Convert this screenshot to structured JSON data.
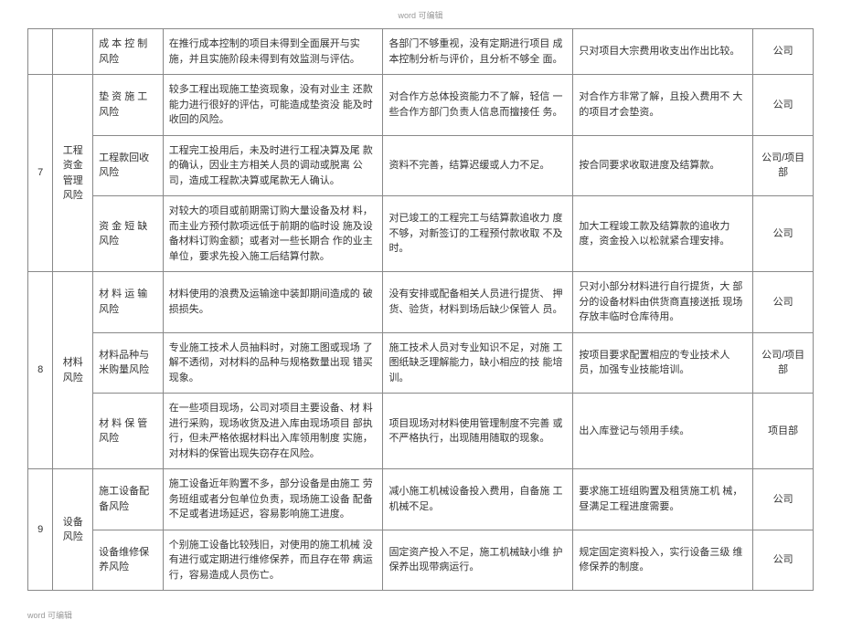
{
  "header": "word 可编辑",
  "footer": "word 可编辑",
  "rows": [
    {
      "num": "",
      "category": "",
      "risk": "成 本 控 制 风险",
      "description": "在推行成本控制的项目未得到全面展开与实 施，并且实施阶段未得到有效监测与评估。",
      "cause": "各部门不够重视，没有定期进行项目 成本控制分析与评价，且分析不够全 面。",
      "measure": "只对项目大宗费用收支出作出比较。",
      "dept": "公司"
    },
    {
      "num": "7",
      "numRowspan": 3,
      "category": "工程资金管理风险",
      "catRowspan": 3,
      "risk": "垫 资 施 工 风险",
      "description": "较多工程出现施工垫资现象，没有对业主 还款能力进行很好的评估，可能造成垫资没 能及时收回的风险。",
      "cause": "对合作方总体投资能力不了解，轻信 一些合作方部门负责人信息而擅接任 务。",
      "measure": "对合作方非常了解，且投入费用不 大的项目才会垫资。",
      "dept": "公司"
    },
    {
      "risk": "工程款回收风险",
      "description": "工程完工投用后，未及时进行工程决算及尾 款的确认，因业主方相关人员的调动或脱离 公司，造成工程款决算或尾款无人确认。",
      "cause": "资料不完善，结算迟缓或人力不足。",
      "measure": "按合同要求收取进度及结算款。",
      "dept": "公司/项目部"
    },
    {
      "risk": "资 金 短 缺 风险",
      "description": "对较大的项目或前期需订购大量设备及材 料，而主业方预付款项远低于前期的临时设 施及设备材料订购金额；或者对一些长期合 作的业主单位，要求先投入施工后结算付款。",
      "cause": "对已竣工的工程完工与结算款追收力 度不够，对新签订的工程预付款收取 不及时。",
      "measure": "加大工程竣工款及结算款的追收力度，资金投入以松就紧合理安排。",
      "dept": "公司"
    },
    {
      "num": "8",
      "numRowspan": 3,
      "category": "材料风险",
      "catRowspan": 3,
      "risk": "材 料 运 输 风险",
      "description": "材料使用的浪费及运输途中装卸期间造成的 破损损失。",
      "cause": "没有安排或配备相关人员进行提货、 押货、验货，材料到场后缺少保管人 员。",
      "measure": "只对小部分材料进行自行提货，大 部分的设备材料由供货商直接送抵 现场存放丰临时仓库待用。",
      "dept": "公司"
    },
    {
      "risk": "材料品种与米购量风险",
      "description": "专业施工技术人员抽料时，对施工图或现场 了解不透彻，对材料的品种与规格数量出现 错买现象。",
      "cause": "施工技术人员对专业知识不足，对施 工图纸缺乏理解能力，缺小相应的技 能培训。",
      "measure": "按项目要求配置相应的专业技术人员，加强专业技能培训。",
      "dept": "公司/项目部"
    },
    {
      "risk": "材 料 保 管 风险",
      "description": "在一些项目现场，公司对项目主要设备、材 料进行采购，现场收货及进入库由现场项目 部执行，但未严格依据材料出入库领用制度 实施，对材料的保管出现失窃存在风险。",
      "cause": "项目现场对材料使用管理制度不完善 或不严格执行，出现随用随取的现象。",
      "measure": "出入库登记与领用手续。",
      "dept": "项目部"
    },
    {
      "num": "9",
      "numRowspan": 2,
      "category": "设备风险",
      "catRowspan": 2,
      "risk": "施工设备配备风险",
      "description": "施工设备近年购置不多，部分设备是由施工 劳务班组或者分包单位负责，现场施工设备 配备不足或者进场延迟，容易影响施工进度。",
      "cause": "减小施工机械设备投入费用，自备施 工机械不足。",
      "measure": "要求施工班组购置及租赁施工机 械，昼满足工程进度需要。",
      "dept": "公司"
    },
    {
      "risk": "设备维修保养风险",
      "description": "个别施工设备比较残旧，对使用的施工机械 没有进行或定期进行维修保养，而且存在带 病运行，容易造成人员伤亡。",
      "cause": "固定资产投入不足，施工机械缺小维 护保养出现带病运行。",
      "measure": "规定固定资料投入，实行设备三级 维修保养的制度。",
      "dept": "公司"
    }
  ]
}
